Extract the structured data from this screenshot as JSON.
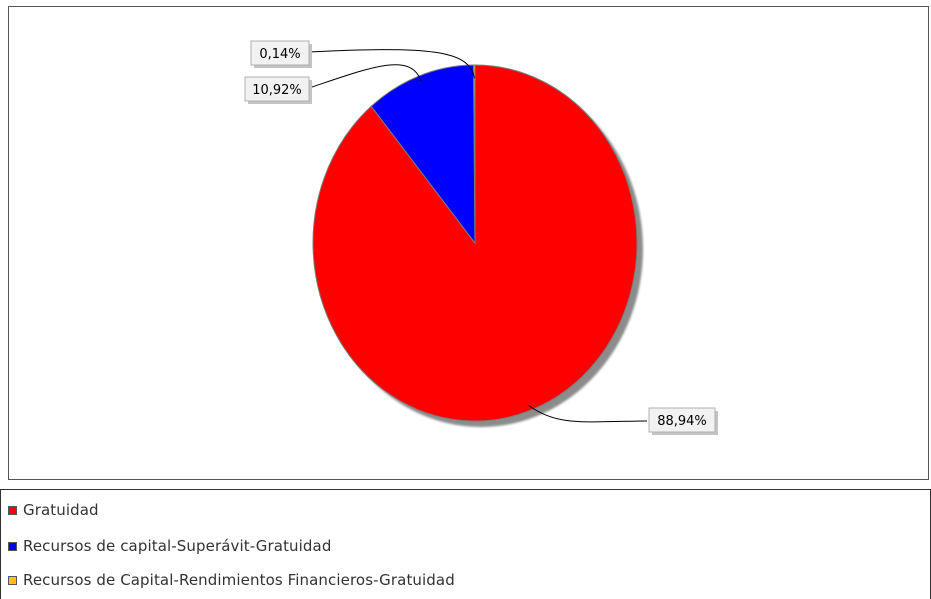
{
  "chart_data": {
    "type": "pie",
    "title": "",
    "slices": [
      {
        "name": "Gratuidad",
        "value": 88.94,
        "label": "88,94%",
        "color": "#ff0000"
      },
      {
        "name": "Recursos de capital-Superávit-Gratuidad",
        "value": 10.92,
        "label": "10,92%",
        "color": "#0000ff"
      },
      {
        "name": "Recursos de Capital-Rendimientos Financieros-Gratuidad",
        "value": 0.14,
        "label": "0,14%",
        "color": "#ffc000"
      }
    ],
    "start_angle_deg": 90,
    "direction": "clockwise",
    "legend_position": "bottom",
    "shadow": true
  }
}
